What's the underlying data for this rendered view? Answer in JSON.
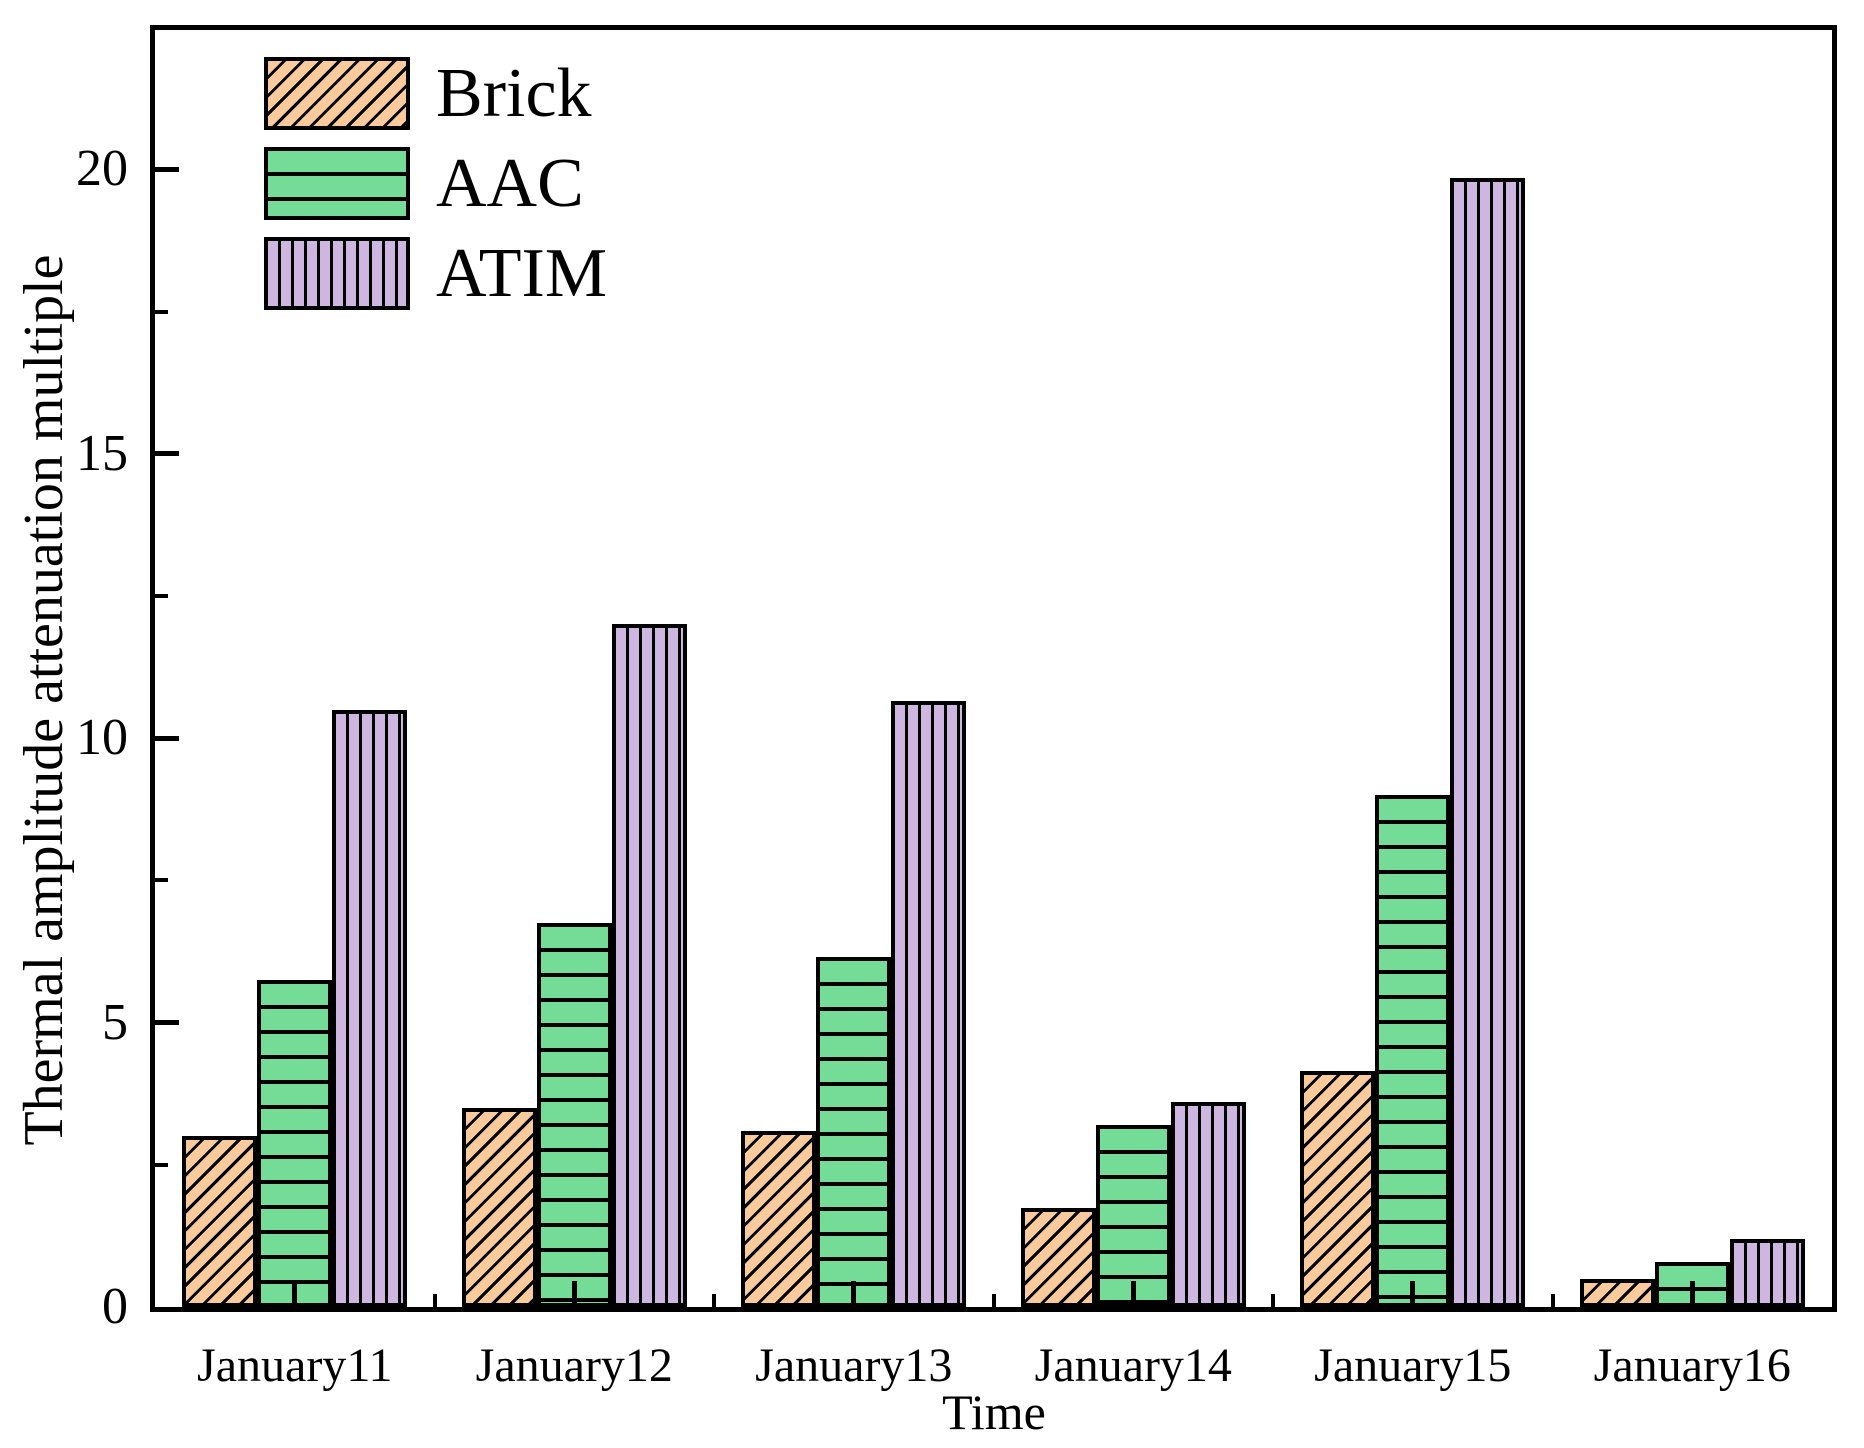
{
  "chart_data": {
    "type": "bar",
    "title": "",
    "categories": [
      "January11",
      "January12",
      "January13",
      "January14",
      "January15",
      "January16"
    ],
    "series": [
      {
        "name": "Brick",
        "values": [
          3.0,
          3.5,
          3.1,
          1.75,
          4.15,
          0.5
        ],
        "color": "#F9CA9B",
        "hatch": "diagonal"
      },
      {
        "name": "AAC",
        "values": [
          5.75,
          6.75,
          6.15,
          3.2,
          9.0,
          0.8
        ],
        "color": "#74DC97",
        "hatch": "horizontal"
      },
      {
        "name": "ATIM",
        "values": [
          10.5,
          12.0,
          10.65,
          3.6,
          19.85,
          1.2
        ],
        "color": "#CDB6DF",
        "hatch": "vertical"
      }
    ],
    "xlabel": "Time",
    "ylabel": "Thermal amplitude attenuation multiple",
    "ylim": [
      0,
      22.45
    ],
    "yticks": [
      0,
      5,
      10,
      15,
      20
    ],
    "y_minor_step": 2.5,
    "grid": false,
    "legend_position": "top-left",
    "frame": "full-box",
    "tick_direction": "in",
    "axis_color": "#000000"
  }
}
